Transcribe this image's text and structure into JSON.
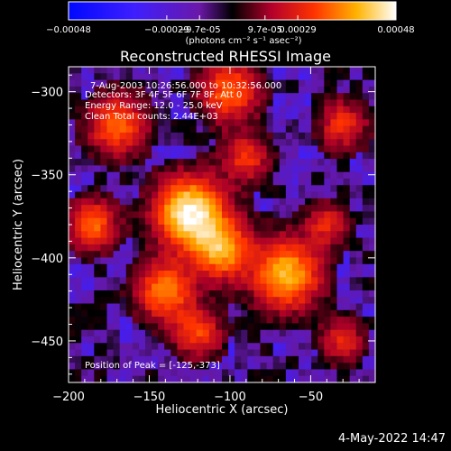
{
  "chart_data": {
    "type": "heatmap",
    "title": "Reconstructed RHESSI Image",
    "xlabel": "Heliocentric X (arcsec)",
    "ylabel": "Heliocentric Y (arcsec)",
    "xlim": [
      -200,
      -10
    ],
    "ylim": [
      -475,
      -285
    ],
    "x_ticks": [
      -200,
      -150,
      -100,
      -50
    ],
    "y_ticks": [
      -300,
      -350,
      -400,
      -450
    ],
    "colorbar": {
      "ticks": [
        "-0.00048",
        "-0.00029",
        "-9.7e-05",
        "9.7e-05",
        "0.00029",
        "0.00048"
      ],
      "unit_text": "(photons cm⁻² s⁻¹ asec⁻²)",
      "range": [
        -0.00048,
        0.00048
      ]
    },
    "annotations": {
      "time_range": "7-Aug-2003 10:26:56.000 to 10:32:56.000",
      "detectors": "Detectors: 3F 4F 5F 6F 7F 8F, Att 0",
      "energy": "Energy Range: 12.0 - 25.0 keV",
      "clean": "Clean    Total counts: 2.44E+03",
      "peak": "Position of Peak = [-125,-373]"
    },
    "peak": {
      "x": -125,
      "y": -373
    },
    "sources": [
      {
        "x": -125,
        "y": -373,
        "amp": 1.0,
        "sigma": 14
      },
      {
        "x": -105,
        "y": -395,
        "amp": 0.7,
        "sigma": 12
      },
      {
        "x": -65,
        "y": -410,
        "amp": 0.75,
        "sigma": 14
      },
      {
        "x": -140,
        "y": -420,
        "amp": 0.6,
        "sigma": 12
      },
      {
        "x": -120,
        "y": -445,
        "amp": 0.45,
        "sigma": 10
      },
      {
        "x": -170,
        "y": -320,
        "amp": 0.55,
        "sigma": 12
      },
      {
        "x": -100,
        "y": -300,
        "amp": 0.55,
        "sigma": 12
      },
      {
        "x": -185,
        "y": -380,
        "amp": 0.55,
        "sigma": 10
      },
      {
        "x": -30,
        "y": -320,
        "amp": 0.4,
        "sigma": 10
      },
      {
        "x": -90,
        "y": -340,
        "amp": 0.4,
        "sigma": 10
      },
      {
        "x": -40,
        "y": -380,
        "amp": 0.35,
        "sigma": 9
      },
      {
        "x": -30,
        "y": -450,
        "amp": 0.35,
        "sigma": 9
      }
    ]
  },
  "footer": {
    "date": "4-May-2022 14:47"
  }
}
